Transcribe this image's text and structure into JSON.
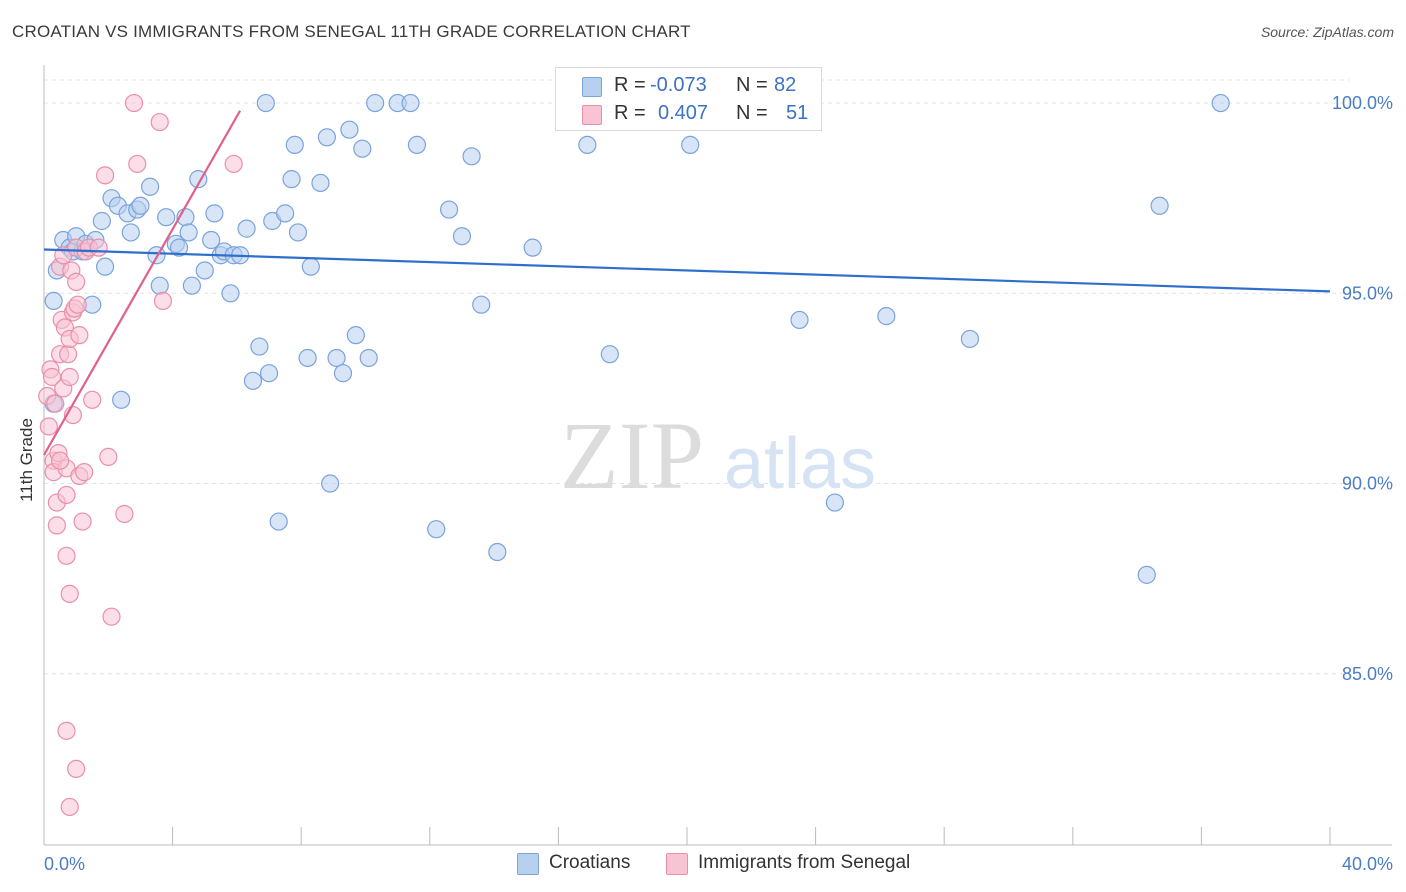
{
  "header": {
    "title": "CROATIAN VS IMMIGRANTS FROM SENEGAL 11TH GRADE CORRELATION CHART",
    "source": "Source: ZipAtlas.com"
  },
  "watermark": {
    "zip": "ZIP",
    "atlas": "atlas"
  },
  "legend": {
    "rows": [
      {
        "r_label": "R =",
        "r_value": "-0.073",
        "n_label": "N =",
        "n_value": "82"
      },
      {
        "r_label": "R =",
        "r_value": "0.407",
        "n_label": "N =",
        "n_value": "51"
      }
    ]
  },
  "bottom_legend": {
    "items": [
      "Croatians",
      "Immigrants from Senegal"
    ]
  },
  "colors": {
    "blue_fill": "#b8d0f0",
    "blue_stroke": "#7aa3dc",
    "blue_line": "#2f6fcc",
    "pink_fill": "#f8c3d3",
    "pink_stroke": "#ea8fab",
    "pink_line": "#e0608a",
    "axis_text": "#4a7cc7",
    "grid": "#e3e3e3"
  },
  "chart_data": {
    "type": "scatter",
    "title": "CROATIAN VS IMMIGRANTS FROM SENEGAL 11TH GRADE CORRELATION CHART",
    "xlabel": "",
    "ylabel": "11th Grade",
    "xlim": [
      0,
      40
    ],
    "ylim": [
      80.5,
      101.0
    ],
    "x_tick_labels": [
      "0.0%",
      "40.0%"
    ],
    "y_ticks": [
      85,
      90,
      95,
      100
    ],
    "y_tick_labels": [
      "85.0%",
      "90.0%",
      "95.0%",
      "100.0%"
    ],
    "grid": true,
    "legend_position": "top-center",
    "series": [
      {
        "name": "Croatians",
        "r": -0.073,
        "n": 82,
        "trend": [
          [
            0,
            96.15
          ],
          [
            40,
            95.05
          ]
        ],
        "points": [
          [
            0.3,
            94.8
          ],
          [
            0.4,
            95.6
          ],
          [
            0.6,
            96.4
          ],
          [
            0.8,
            96.2
          ],
          [
            0.9,
            96.1
          ],
          [
            1.0,
            96.5
          ],
          [
            1.2,
            96.1
          ],
          [
            1.3,
            96.3
          ],
          [
            1.5,
            94.7
          ],
          [
            1.6,
            96.4
          ],
          [
            1.8,
            96.9
          ],
          [
            1.9,
            95.7
          ],
          [
            2.1,
            97.5
          ],
          [
            2.3,
            97.3
          ],
          [
            2.6,
            97.1
          ],
          [
            2.7,
            96.6
          ],
          [
            2.9,
            97.2
          ],
          [
            3.0,
            97.3
          ],
          [
            3.3,
            97.8
          ],
          [
            3.5,
            96.0
          ],
          [
            3.6,
            95.2
          ],
          [
            3.8,
            97.0
          ],
          [
            4.1,
            96.3
          ],
          [
            4.2,
            96.2
          ],
          [
            4.4,
            97.0
          ],
          [
            4.5,
            96.6
          ],
          [
            4.6,
            95.2
          ],
          [
            4.8,
            98.0
          ],
          [
            5.0,
            95.6
          ],
          [
            5.2,
            96.4
          ],
          [
            5.3,
            97.1
          ],
          [
            5.5,
            96.0
          ],
          [
            5.6,
            96.1
          ],
          [
            5.8,
            95.0
          ],
          [
            5.9,
            96.0
          ],
          [
            6.1,
            96.0
          ],
          [
            6.3,
            96.7
          ],
          [
            6.5,
            92.7
          ],
          [
            6.7,
            93.6
          ],
          [
            6.9,
            100.0
          ],
          [
            7.0,
            92.9
          ],
          [
            7.1,
            96.9
          ],
          [
            7.3,
            89.0
          ],
          [
            7.5,
            97.1
          ],
          [
            7.7,
            98.0
          ],
          [
            7.8,
            98.9
          ],
          [
            7.9,
            96.6
          ],
          [
            8.2,
            93.3
          ],
          [
            8.3,
            95.7
          ],
          [
            8.6,
            97.9
          ],
          [
            8.8,
            99.1
          ],
          [
            8.9,
            90.0
          ],
          [
            9.1,
            93.3
          ],
          [
            9.3,
            92.9
          ],
          [
            9.5,
            99.3
          ],
          [
            9.7,
            93.9
          ],
          [
            9.9,
            98.8
          ],
          [
            10.1,
            93.3
          ],
          [
            10.3,
            100.0
          ],
          [
            11.0,
            100.0
          ],
          [
            11.4,
            100.0
          ],
          [
            11.6,
            98.9
          ],
          [
            12.2,
            88.8
          ],
          [
            12.6,
            97.2
          ],
          [
            13.0,
            96.5
          ],
          [
            13.3,
            98.6
          ],
          [
            13.6,
            94.7
          ],
          [
            14.1,
            88.2
          ],
          [
            15.2,
            96.2
          ],
          [
            16.9,
            98.9
          ],
          [
            17.6,
            93.4
          ],
          [
            20.0,
            100.0
          ],
          [
            20.1,
            98.9
          ],
          [
            23.5,
            94.3
          ],
          [
            24.6,
            89.5
          ],
          [
            26.2,
            94.4
          ],
          [
            28.8,
            93.8
          ],
          [
            34.3,
            87.6
          ],
          [
            34.7,
            97.3
          ],
          [
            36.6,
            100.0
          ],
          [
            2.4,
            92.2
          ],
          [
            0.3,
            92.1
          ]
        ]
      },
      {
        "name": "Immigrants from Senegal",
        "r": 0.407,
        "n": 51,
        "trend": [
          [
            0,
            90.75
          ],
          [
            6.1,
            99.8
          ]
        ],
        "points": [
          [
            0.1,
            92.3
          ],
          [
            0.15,
            91.5
          ],
          [
            0.2,
            93.0
          ],
          [
            0.25,
            92.8
          ],
          [
            0.3,
            90.6
          ],
          [
            0.3,
            90.3
          ],
          [
            0.35,
            92.1
          ],
          [
            0.4,
            89.5
          ],
          [
            0.4,
            88.9
          ],
          [
            0.45,
            90.8
          ],
          [
            0.5,
            93.4
          ],
          [
            0.5,
            95.7
          ],
          [
            0.55,
            94.3
          ],
          [
            0.6,
            92.5
          ],
          [
            0.6,
            96.0
          ],
          [
            0.65,
            94.1
          ],
          [
            0.7,
            90.4
          ],
          [
            0.7,
            89.7
          ],
          [
            0.7,
            88.1
          ],
          [
            0.75,
            93.4
          ],
          [
            0.8,
            92.8
          ],
          [
            0.8,
            93.8
          ],
          [
            0.8,
            87.1
          ],
          [
            0.85,
            95.6
          ],
          [
            0.9,
            94.5
          ],
          [
            0.9,
            91.8
          ],
          [
            0.95,
            94.6
          ],
          [
            1.0,
            95.3
          ],
          [
            1.0,
            96.2
          ],
          [
            1.05,
            94.7
          ],
          [
            1.1,
            90.2
          ],
          [
            1.1,
            93.9
          ],
          [
            1.2,
            89.0
          ],
          [
            1.25,
            90.3
          ],
          [
            1.3,
            96.1
          ],
          [
            1.4,
            96.2
          ],
          [
            1.5,
            92.2
          ],
          [
            1.7,
            96.2
          ],
          [
            1.9,
            98.1
          ],
          [
            2.0,
            90.7
          ],
          [
            2.1,
            86.5
          ],
          [
            2.5,
            89.2
          ],
          [
            2.8,
            100.0
          ],
          [
            2.9,
            98.4
          ],
          [
            3.6,
            99.5
          ],
          [
            3.7,
            94.8
          ],
          [
            5.9,
            98.4
          ],
          [
            0.7,
            83.5
          ],
          [
            1.0,
            82.5
          ],
          [
            0.8,
            81.5
          ],
          [
            0.5,
            90.6
          ]
        ]
      }
    ]
  }
}
